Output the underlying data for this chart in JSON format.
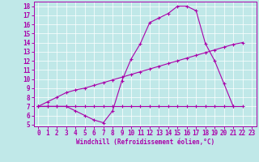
{
  "xlabel": "Windchill (Refroidissement éolien,°C)",
  "xlim": [
    -0.5,
    23.5
  ],
  "ylim": [
    4.8,
    18.5
  ],
  "xticks": [
    0,
    1,
    2,
    3,
    4,
    5,
    6,
    7,
    8,
    9,
    10,
    11,
    12,
    13,
    14,
    15,
    16,
    17,
    18,
    19,
    20,
    21,
    22,
    23
  ],
  "yticks": [
    5,
    6,
    7,
    8,
    9,
    10,
    11,
    12,
    13,
    14,
    15,
    16,
    17,
    18
  ],
  "bg_color": "#c0e8e8",
  "line_color": "#aa00aa",
  "grid_color": "#ffffff",
  "curve1_x": [
    0,
    1,
    2,
    3,
    4,
    5,
    6,
    7,
    8,
    9,
    10,
    11,
    12,
    13,
    14,
    15,
    16,
    17,
    18,
    19,
    20,
    21
  ],
  "curve1_y": [
    7,
    7,
    7,
    7,
    6.5,
    6.0,
    5.5,
    5.2,
    6.5,
    9.8,
    12.2,
    13.9,
    16.2,
    16.7,
    17.2,
    18.0,
    18.0,
    17.5,
    13.9,
    12.0,
    9.5,
    7.0
  ],
  "curve2_x": [
    0,
    1,
    2,
    3,
    4,
    5,
    6,
    7,
    8,
    9,
    10,
    11,
    12,
    13,
    14,
    15,
    16,
    17,
    18,
    19,
    20,
    21,
    22
  ],
  "curve2_y": [
    7,
    7,
    7,
    7,
    7,
    7,
    7,
    7,
    7,
    7,
    7,
    7,
    7,
    7,
    7,
    7,
    7,
    7,
    7,
    7,
    7,
    7,
    7
  ],
  "curve3_x": [
    0,
    1,
    2,
    3,
    4,
    5,
    6,
    7,
    8,
    9,
    10,
    11,
    12,
    13,
    14,
    15,
    16,
    17,
    18,
    19,
    20,
    21,
    22
  ],
  "curve3_y": [
    7,
    7.5,
    8.0,
    8.5,
    8.8,
    9.0,
    9.3,
    9.6,
    9.9,
    10.2,
    10.5,
    10.8,
    11.1,
    11.4,
    11.7,
    12.0,
    12.3,
    12.6,
    12.9,
    13.2,
    13.5,
    13.8,
    14.0
  ]
}
